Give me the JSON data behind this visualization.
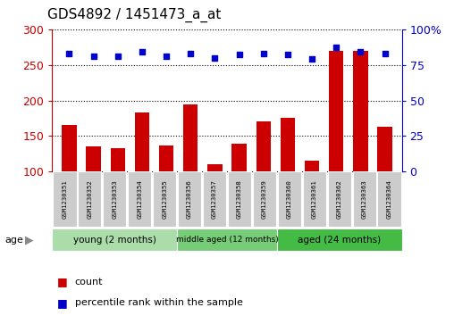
{
  "title": "GDS4892 / 1451473_a_at",
  "samples": [
    "GSM1230351",
    "GSM1230352",
    "GSM1230353",
    "GSM1230354",
    "GSM1230355",
    "GSM1230356",
    "GSM1230357",
    "GSM1230358",
    "GSM1230359",
    "GSM1230360",
    "GSM1230361",
    "GSM1230362",
    "GSM1230363",
    "GSM1230364"
  ],
  "counts": [
    165,
    136,
    133,
    183,
    137,
    195,
    110,
    139,
    171,
    175,
    116,
    270,
    270,
    163
  ],
  "percentiles": [
    83,
    81,
    81,
    84,
    81,
    83,
    80,
    82,
    83,
    82,
    79,
    87,
    84,
    83
  ],
  "ylim_left": [
    100,
    300
  ],
  "ylim_right": [
    0,
    100
  ],
  "yticks_left": [
    100,
    150,
    200,
    250,
    300
  ],
  "yticks_right": [
    0,
    25,
    50,
    75,
    100
  ],
  "bar_color": "#cc0000",
  "dot_color": "#0000cc",
  "grid_color": "#000000",
  "bg_color": "#ffffff",
  "group_colors": [
    "#aaddaa",
    "#77cc77",
    "#44bb44"
  ],
  "groups": [
    {
      "label": "young (2 months)",
      "start": 0,
      "end": 5
    },
    {
      "label": "middle aged (12 months)",
      "start": 5,
      "end": 9
    },
    {
      "label": "aged (24 months)",
      "start": 9,
      "end": 14
    }
  ],
  "xlabel_age": "age",
  "legend_count": "count",
  "legend_percentile": "percentile rank within the sample",
  "title_fontsize": 11,
  "tick_fontsize": 7,
  "bar_width": 0.6
}
